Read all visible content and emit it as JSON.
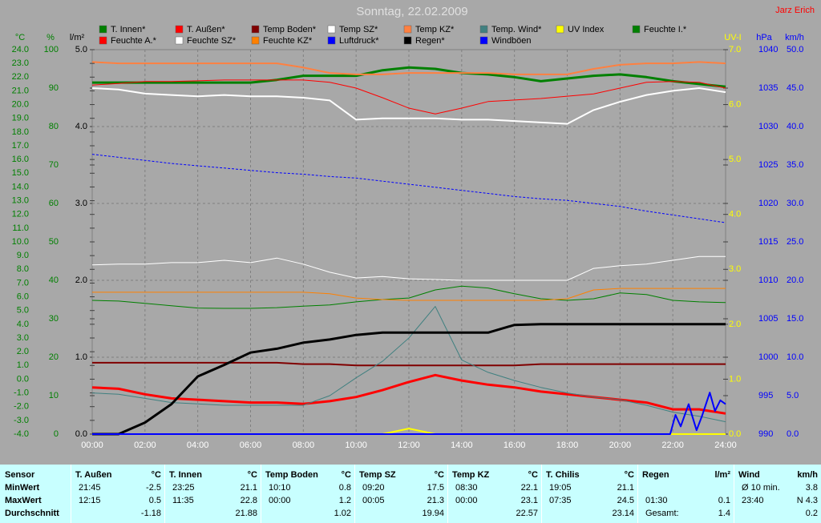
{
  "chart_data": {
    "type": "line",
    "title": "Sonntag, 22.02.2009",
    "author": "Jarz Erich",
    "x": [
      0,
      1,
      2,
      3,
      4,
      5,
      6,
      7,
      8,
      9,
      10,
      11,
      12,
      13,
      14,
      15,
      16,
      17,
      18,
      19,
      20,
      21,
      22,
      23,
      24
    ],
    "xlim": [
      0,
      24
    ],
    "xticks": [
      {
        "value": 0,
        "label": "00:00"
      },
      {
        "value": 2,
        "label": "02:00"
      },
      {
        "value": 4,
        "label": "04:00"
      },
      {
        "value": 6,
        "label": "06:00"
      },
      {
        "value": 8,
        "label": "08:00"
      },
      {
        "value": 10,
        "label": "10:00"
      },
      {
        "value": 12,
        "label": "12:00"
      },
      {
        "value": 14,
        "label": "14:00"
      },
      {
        "value": 16,
        "label": "16:00"
      },
      {
        "value": 18,
        "label": "18:00"
      },
      {
        "value": 20,
        "label": "20:00"
      },
      {
        "value": 22,
        "label": "22:00"
      },
      {
        "value": 24,
        "label": "24:00"
      }
    ],
    "grid": true,
    "axes": [
      {
        "label": "°C",
        "color": "#008000",
        "ylim": [
          -4,
          24
        ],
        "yticks": [
          {
            "value": -4,
            "label": "-4.0"
          },
          {
            "value": -3,
            "label": "-3.0"
          },
          {
            "value": -2,
            "label": "-2.0"
          },
          {
            "value": -1,
            "label": "-1.0"
          },
          {
            "value": 0,
            "label": "0.0"
          },
          {
            "value": 1,
            "label": "1.0"
          },
          {
            "value": 2,
            "label": "2.0"
          },
          {
            "value": 3,
            "label": "3.0"
          },
          {
            "value": 4,
            "label": "4.0"
          },
          {
            "value": 5,
            "label": "5.0"
          },
          {
            "value": 6,
            "label": "6.0"
          },
          {
            "value": 7,
            "label": "7.0"
          },
          {
            "value": 8,
            "label": "8.0"
          },
          {
            "value": 9,
            "label": "9.0"
          },
          {
            "value": 10,
            "label": "10.0"
          },
          {
            "value": 11,
            "label": "11.0"
          },
          {
            "value": 12,
            "label": "12.0"
          },
          {
            "value": 13,
            "label": "13.0"
          },
          {
            "value": 14,
            "label": "14.0"
          },
          {
            "value": 15,
            "label": "15.0"
          },
          {
            "value": 16,
            "label": "16.0"
          },
          {
            "value": 17,
            "label": "17.0"
          },
          {
            "value": 18,
            "label": "18.0"
          },
          {
            "value": 19,
            "label": "19.0"
          },
          {
            "value": 20,
            "label": "20.0"
          },
          {
            "value": 21,
            "label": "21.0"
          },
          {
            "value": 22,
            "label": "22.0"
          },
          {
            "value": 23,
            "label": "23.0"
          },
          {
            "value": 24,
            "label": "24.0"
          }
        ]
      },
      {
        "label": "%",
        "color": "#008000",
        "ylim": [
          0,
          100
        ],
        "yticks": [
          0,
          10,
          20,
          30,
          40,
          50,
          60,
          70,
          80,
          90,
          100
        ]
      },
      {
        "label": "l/m²",
        "color": "#000000",
        "grid": true,
        "ylim": [
          0,
          5
        ],
        "yticks": [
          {
            "value": 0,
            "label": "0.0"
          },
          {
            "value": 1,
            "label": "1.0"
          },
          {
            "value": 2,
            "label": "2.0"
          },
          {
            "value": 3,
            "label": "3.0"
          },
          {
            "value": 4,
            "label": "4.0"
          },
          {
            "value": 5,
            "label": "5.0"
          }
        ]
      },
      {
        "label": "UV-I",
        "color": "#ffff00",
        "ylim": [
          0,
          7
        ],
        "yticks": [
          {
            "value": 0,
            "label": "0.0"
          },
          {
            "value": 1,
            "label": "1.0"
          },
          {
            "value": 2,
            "label": "2.0"
          },
          {
            "value": 3,
            "label": "3.0"
          },
          {
            "value": 4,
            "label": "4.0"
          },
          {
            "value": 5,
            "label": "5.0"
          },
          {
            "value": 6,
            "label": "6.0"
          },
          {
            "value": 7,
            "label": "7.0"
          }
        ]
      },
      {
        "label": "hPa",
        "color": "#0000ff",
        "ylim": [
          990,
          1040
        ],
        "yticks": [
          990,
          995,
          1000,
          1005,
          1010,
          1015,
          1020,
          1025,
          1030,
          1035,
          1040
        ]
      },
      {
        "label": "km/h",
        "color": "#0000ff",
        "ylim": [
          0,
          50
        ],
        "yticks": [
          {
            "value": 0,
            "label": "0.0"
          },
          {
            "value": 5,
            "label": "5.0"
          },
          {
            "value": 10,
            "label": "10.0"
          },
          {
            "value": 15,
            "label": "15.0"
          },
          {
            "value": 20,
            "label": "20.0"
          },
          {
            "value": 25,
            "label": "25.0"
          },
          {
            "value": 30,
            "label": "30.0"
          },
          {
            "value": 35,
            "label": "35.0"
          },
          {
            "value": 40,
            "label": "40.0"
          },
          {
            "value": 45,
            "label": "45.0"
          },
          {
            "value": 50,
            "label": "50.0"
          }
        ]
      }
    ],
    "series": [
      {
        "name": "T. Innen*",
        "color": "#008000",
        "axis": 0,
        "line_width": 3,
        "values": [
          21.6,
          21.6,
          21.6,
          21.6,
          21.6,
          21.6,
          21.6,
          21.8,
          22.1,
          22.1,
          22.1,
          22.5,
          22.7,
          22.6,
          22.3,
          22.2,
          22.0,
          21.7,
          21.9,
          22.1,
          22.2,
          22.0,
          21.7,
          21.5,
          21.3
        ]
      },
      {
        "name": "T. Außen*",
        "color": "#ff0000",
        "axis": 0,
        "line_width": 3,
        "values": [
          -0.6,
          -0.7,
          -1.1,
          -1.4,
          -1.5,
          -1.6,
          -1.7,
          -1.7,
          -1.8,
          -1.6,
          -1.3,
          -0.8,
          -0.2,
          0.3,
          -0.1,
          -0.4,
          -0.6,
          -0.9,
          -1.1,
          -1.3,
          -1.5,
          -1.7,
          -2.2,
          -2.2,
          -2.5
        ]
      },
      {
        "name": "Temp Boden*",
        "color": "#800000",
        "axis": 0,
        "line_width": 2,
        "values": [
          1.2,
          1.2,
          1.2,
          1.2,
          1.2,
          1.2,
          1.2,
          1.2,
          1.1,
          1.1,
          1.0,
          1.0,
          1.0,
          1.0,
          1.0,
          1.0,
          1.0,
          1.1,
          1.1,
          1.1,
          1.1,
          1.1,
          1.1,
          1.1,
          1.1
        ]
      },
      {
        "name": "Temp SZ*",
        "color": "#ffffff",
        "axis": 0,
        "line_width": 2,
        "values": [
          21.2,
          21.1,
          20.8,
          20.7,
          20.6,
          20.7,
          20.6,
          20.6,
          20.5,
          20.3,
          18.9,
          19.0,
          19.0,
          19.0,
          18.9,
          18.9,
          18.8,
          18.7,
          18.6,
          19.6,
          20.2,
          20.7,
          21.0,
          21.2,
          20.9
        ]
      },
      {
        "name": "Temp KZ*",
        "color": "#ff8040",
        "axis": 0,
        "line_width": 2,
        "values": [
          23.1,
          23.0,
          23.0,
          23.0,
          23.0,
          23.0,
          23.0,
          23.0,
          22.7,
          22.3,
          22.2,
          22.2,
          22.3,
          22.3,
          22.3,
          22.3,
          22.2,
          22.2,
          22.2,
          22.6,
          22.9,
          23.0,
          23.0,
          23.1,
          23.0
        ]
      },
      {
        "name": "Temp. Wind*",
        "color": "#408080",
        "axis": 0,
        "line_width": 1,
        "values": [
          -1.0,
          -1.1,
          -1.4,
          -1.7,
          -1.8,
          -1.9,
          -1.9,
          -1.9,
          -1.9,
          -1.2,
          0.1,
          1.3,
          3.0,
          5.3,
          1.4,
          0.5,
          -0.1,
          -0.6,
          -1.0,
          -1.3,
          -1.5,
          -1.9,
          -2.4,
          -2.7,
          -3.1
        ]
      },
      {
        "name": "UV Index",
        "color": "#ffff00",
        "axis": 3,
        "line_width": 2,
        "values": [
          0,
          0,
          0,
          0,
          0,
          0,
          0,
          0,
          0,
          0,
          0,
          0,
          0.1,
          0,
          0,
          0,
          0,
          0,
          0,
          0,
          0,
          0,
          0,
          0,
          0
        ]
      },
      {
        "name": "Feuchte I.*",
        "color": "#008000",
        "axis": 1,
        "line_width": 1,
        "values": [
          34.8,
          34.6,
          34.0,
          33.4,
          32.8,
          32.7,
          32.7,
          32.9,
          33.3,
          33.6,
          34.4,
          35.0,
          35.4,
          37.5,
          38.5,
          38.0,
          36.5,
          35.2,
          34.8,
          35.2,
          36.7,
          36.3,
          34.8,
          34.4,
          34.2
        ]
      },
      {
        "name": "Feuchte A.*",
        "color": "#ff0000",
        "axis": 1,
        "line_width": 1,
        "values": [
          90.8,
          91.2,
          91.7,
          91.7,
          91.9,
          92.1,
          92.1,
          92.1,
          92.1,
          91.5,
          90.0,
          87.5,
          84.8,
          83.3,
          84.8,
          86.5,
          86.9,
          87.3,
          87.9,
          88.5,
          90.0,
          91.5,
          91.7,
          91.5,
          90.0
        ]
      },
      {
        "name": "Feuchte SZ*",
        "color": "#ffffff",
        "axis": 1,
        "line_width": 1,
        "values": [
          44.0,
          44.2,
          44.2,
          44.6,
          44.6,
          45.2,
          44.6,
          45.8,
          44.2,
          42.1,
          40.6,
          41.0,
          40.4,
          40.2,
          40.0,
          40.0,
          40.0,
          40.0,
          40.0,
          43.1,
          43.8,
          44.2,
          45.2,
          46.2,
          46.2
        ]
      },
      {
        "name": "Feuchte KZ*",
        "color": "#ff8000",
        "axis": 1,
        "line_width": 1,
        "values": [
          36.9,
          36.9,
          36.9,
          36.9,
          36.9,
          36.9,
          36.9,
          36.9,
          36.9,
          36.5,
          35.4,
          35.0,
          34.8,
          34.8,
          34.8,
          34.8,
          34.8,
          34.8,
          35.2,
          37.5,
          37.9,
          37.9,
          37.9,
          37.9,
          37.9
        ]
      },
      {
        "name": "Luftdruck*",
        "color": "#0000ff",
        "axis": 4,
        "line_width": 1,
        "dashed": true,
        "values": [
          1026.4,
          1026.0,
          1025.6,
          1025.2,
          1024.9,
          1024.6,
          1024.3,
          1024.0,
          1023.8,
          1023.5,
          1023.3,
          1022.9,
          1022.5,
          1022.1,
          1021.7,
          1021.3,
          1020.9,
          1020.6,
          1020.4,
          1020.0,
          1019.6,
          1019.0,
          1018.5,
          1018.0,
          1017.5
        ]
      },
      {
        "name": "Regen*",
        "color": "#000000",
        "axis": 2,
        "line_width": 3,
        "values": [
          0,
          0,
          0.15,
          0.39,
          0.75,
          0.9,
          1.06,
          1.11,
          1.19,
          1.23,
          1.29,
          1.32,
          1.32,
          1.32,
          1.32,
          1.32,
          1.42,
          1.43,
          1.43,
          1.43,
          1.43,
          1.43,
          1.43,
          1.43,
          1.43
        ]
      },
      {
        "name": "Windböen",
        "color": "#0000ff",
        "axis": 5,
        "line_width": 2,
        "x": [
          0,
          21.9,
          22.1,
          22.3,
          22.6,
          22.9,
          23.1,
          23.4,
          23.6,
          23.8,
          24
        ],
        "values": [
          0,
          0,
          2.5,
          1.0,
          3.9,
          0.5,
          2.3,
          5.4,
          3.0,
          4.4,
          3.9
        ]
      }
    ]
  },
  "table": {
    "header": [
      {
        "label": "Sensor"
      },
      {
        "label": "T. Außen",
        "unit": "°C"
      },
      {
        "label": "T. Innen",
        "unit": "°C"
      },
      {
        "label": "Temp Boden",
        "unit": "°C"
      },
      {
        "label": "Temp SZ",
        "unit": "°C"
      },
      {
        "label": "Temp KZ",
        "unit": "°C"
      },
      {
        "label": "T. Chilis",
        "unit": "°C"
      },
      {
        "label": "Regen",
        "unit": "l/m²"
      },
      {
        "label": "Wind",
        "unit": "km/h"
      }
    ],
    "rows": [
      {
        "label": "MinWert",
        "cells": [
          {
            "time": "21:45",
            "value": -2.5
          },
          {
            "time": "23:25",
            "value": 21.1
          },
          {
            "time": "10:10",
            "value": 0.8
          },
          {
            "time": "09:20",
            "value": 17.5
          },
          {
            "time": "08:30",
            "value": 22.1
          },
          {
            "time": "19:05",
            "value": 21.1
          },
          {},
          {
            "time": "Ø 10 min.",
            "value": 3.8
          }
        ]
      },
      {
        "label": "MaxWert",
        "cells": [
          {
            "time": "12:15",
            "value": 0.5
          },
          {
            "time": "11:35",
            "value": 22.8
          },
          {
            "time": "00:00",
            "value": 1.2
          },
          {
            "time": "00:05",
            "value": 21.3
          },
          {
            "time": "00:00",
            "value": 23.1
          },
          {
            "time": "07:35",
            "value": 24.5
          },
          {
            "time": "01:30",
            "value": 0.1
          },
          {
            "time": "23:40",
            "value": "N 4.3"
          }
        ]
      },
      {
        "label": "Durchschnitt",
        "cells": [
          {
            "value": -1.18
          },
          {
            "value": 21.88
          },
          {
            "value": 1.02
          },
          {
            "value": 19.94
          },
          {
            "value": 22.57
          },
          {
            "value": 23.14
          },
          {
            "time": "Gesamt:",
            "value": 1.4
          },
          {
            "value": 0.2
          }
        ]
      }
    ]
  }
}
